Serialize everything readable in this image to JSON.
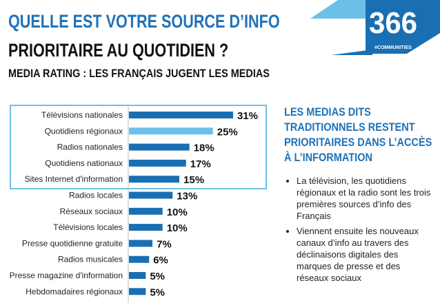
{
  "title_line1": "QUELLE EST VOTRE SOURCE D’INFO",
  "title_line2": "PRIORITAIRE AU QUOTIDIEN ?",
  "subtitle": "MEDIA RATING : LES FRANÇAIS JUGENT LES MEDIAS",
  "logo": {
    "number": "366",
    "tag": "#COMMUNITIES"
  },
  "colors": {
    "bar": "#1a6fb3",
    "highlight": "#6cc0e8",
    "accent": "#1f72b8"
  },
  "chart_data": {
    "type": "bar",
    "orientation": "horizontal",
    "categories": [
      "Télévisions nationales",
      "Quotidiens régionaux",
      "Radios nationales",
      "Quotidiens nationaux",
      "Sites Internet d'information",
      "Radios locales",
      "Réseaux sociaux",
      "Télévisions locales",
      "Presse quotidienne gratuite",
      "Radios musicales",
      "Presse magazine d'information",
      "Hebdomadaires régionaux"
    ],
    "values": [
      31,
      25,
      18,
      17,
      15,
      13,
      10,
      10,
      7,
      6,
      5,
      5
    ],
    "labels": [
      "31%",
      "25%",
      "18%",
      "17%",
      "15%",
      "13%",
      "10%",
      "10%",
      "7%",
      "6%",
      "5%",
      "5%"
    ],
    "highlighted_category": "Quotidiens régionaux",
    "boxed_categories_count": 5,
    "unit": "%"
  },
  "side": {
    "heading": "LES MEDIAS DITS TRADITIONNELS RESTENT PRIORITAIRES DANS L’ACCÈS À L’INFORMATION",
    "bullets": [
      "La télévision, les quotidiens régionaux et la radio sont les trois premières sources d’info des Français",
      "Viennent ensuite les nouveaux canaux d’info au travers des déclinaisons digitales des marques de presse et des réseaux sociaux"
    ]
  }
}
